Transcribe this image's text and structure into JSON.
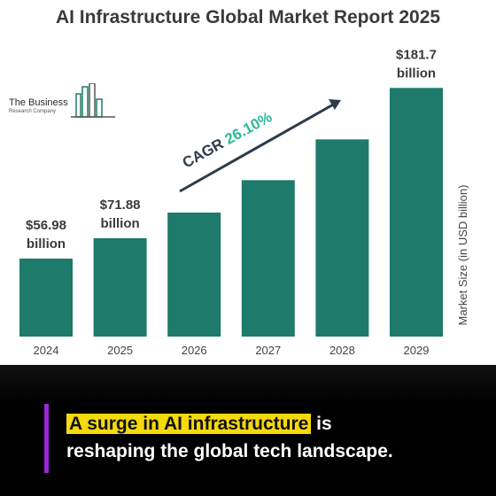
{
  "chart_data": {
    "type": "bar",
    "title": "AI Infrastructure Global Market Report 2025",
    "categories": [
      "2024",
      "2025",
      "2026",
      "2027",
      "2028",
      "2029"
    ],
    "values": [
      56.98,
      71.88,
      90.6,
      114.3,
      144.1,
      181.7
    ],
    "data_labels": [
      {
        "index": 0,
        "value": "$56.98",
        "unit": "billion"
      },
      {
        "index": 1,
        "value": "$71.88",
        "unit": "billion"
      },
      {
        "index": 5,
        "value": "$181.7",
        "unit": "billion"
      }
    ],
    "ylabel": "Market Size (in USD billion)",
    "annotation": {
      "label": "CAGR",
      "value": "26.10%"
    },
    "grid": false,
    "colors": {
      "bar": "#1e7a6a",
      "cagr": "#2eb89a",
      "text": "#3a3a3a"
    }
  },
  "logo": {
    "line1": "The Business",
    "line2": "Research Company"
  },
  "caption": {
    "highlight": "A surge in AI infrastructure",
    "rest1": " is",
    "line2": "reshaping the global tech landscape."
  }
}
